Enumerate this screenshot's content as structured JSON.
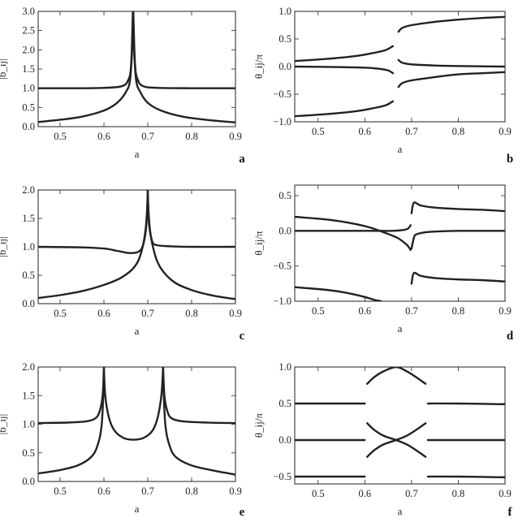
{
  "colors": {
    "line": "#222222",
    "frame": "#222222",
    "background": "#ffffff"
  },
  "chart_data": [
    {
      "panel": "a",
      "type": "line",
      "xlabel": "a",
      "ylabel": "|b_ij|",
      "xlim": [
        0.45,
        0.9
      ],
      "ylim": [
        0,
        3.0
      ],
      "xticks": [
        0.5,
        0.6,
        0.7,
        0.8,
        0.9
      ],
      "xtick_labels": [
        "0.5",
        "0.6",
        "0.7",
        "0.8",
        "0.9"
      ],
      "yticks": [
        0,
        0.5,
        1.0,
        1.5,
        2.0,
        2.5,
        3.0
      ],
      "ytick_labels": [
        "0.0",
        "0.5",
        "1.0",
        "1.5",
        "2.0",
        "2.5",
        "3.0"
      ],
      "grid": false,
      "series": [
        {
          "x": [
            0.45,
            0.55,
            0.6,
            0.64,
            0.655,
            0.662,
            0.666
          ],
          "y": [
            1.0,
            1.0,
            1.01,
            1.05,
            1.2,
            1.6,
            3.0
          ]
        },
        {
          "x": [
            0.667,
            0.671,
            0.678,
            0.69,
            0.72,
            0.8,
            0.9
          ],
          "y": [
            3.0,
            1.6,
            1.2,
            1.05,
            1.01,
            1.0,
            1.0
          ]
        },
        {
          "x": [
            0.45,
            0.5,
            0.55,
            0.6,
            0.63,
            0.65,
            0.66,
            0.666
          ],
          "y": [
            0.12,
            0.18,
            0.26,
            0.42,
            0.62,
            0.9,
            1.25,
            2.4
          ]
        },
        {
          "x": [
            0.667,
            0.673,
            0.683,
            0.7,
            0.73,
            0.78,
            0.84,
            0.9
          ],
          "y": [
            2.4,
            1.25,
            0.9,
            0.62,
            0.42,
            0.26,
            0.17,
            0.11
          ]
        }
      ]
    },
    {
      "panel": "b",
      "type": "line",
      "xlabel": "a",
      "ylabel": "θ_ij/π",
      "xlim": [
        0.45,
        0.9
      ],
      "ylim": [
        -1.0,
        1.0
      ],
      "xticks": [
        0.5,
        0.6,
        0.7,
        0.8,
        0.9
      ],
      "xtick_labels": [
        "0.5",
        "0.6",
        "0.7",
        "0.8",
        "0.9"
      ],
      "yticks": [
        -1.0,
        -0.5,
        0.0,
        0.5,
        1.0
      ],
      "ytick_labels": [
        "−1.0",
        "−0.5",
        "0.0",
        "0.5",
        "1.0"
      ],
      "grid": false,
      "series": [
        {
          "x": [
            0.45,
            0.52,
            0.58,
            0.62,
            0.645,
            0.66
          ],
          "y": [
            0.1,
            0.14,
            0.19,
            0.25,
            0.3,
            0.37
          ]
        },
        {
          "x": [
            0.45,
            0.55,
            0.6,
            0.63,
            0.65,
            0.66
          ],
          "y": [
            0.0,
            -0.01,
            -0.02,
            -0.04,
            -0.07,
            -0.12
          ]
        },
        {
          "x": [
            0.45,
            0.52,
            0.58,
            0.62,
            0.645,
            0.66
          ],
          "y": [
            -0.9,
            -0.86,
            -0.81,
            -0.75,
            -0.7,
            -0.63
          ]
        },
        {
          "x": [
            0.672,
            0.68,
            0.7,
            0.75,
            0.8,
            0.85,
            0.9
          ],
          "y": [
            0.63,
            0.7,
            0.75,
            0.81,
            0.85,
            0.88,
            0.9
          ]
        },
        {
          "x": [
            0.672,
            0.68,
            0.7,
            0.75,
            0.8,
            0.9
          ],
          "y": [
            0.12,
            0.07,
            0.04,
            0.02,
            0.01,
            0.0
          ]
        },
        {
          "x": [
            0.672,
            0.68,
            0.7,
            0.75,
            0.8,
            0.85,
            0.9
          ],
          "y": [
            -0.37,
            -0.3,
            -0.25,
            -0.19,
            -0.14,
            -0.12,
            -0.1
          ]
        }
      ]
    },
    {
      "panel": "c",
      "type": "line",
      "xlabel": "a",
      "ylabel": "|b_ij|",
      "xlim": [
        0.45,
        0.9
      ],
      "ylim": [
        0,
        2.0
      ],
      "xticks": [
        0.5,
        0.6,
        0.7,
        0.8,
        0.9
      ],
      "xtick_labels": [
        "0.5",
        "0.6",
        "0.7",
        "0.8",
        "0.9"
      ],
      "yticks": [
        0,
        0.5,
        1.0,
        1.5,
        2.0
      ],
      "ytick_labels": [
        "0.0",
        "0.5",
        "1.0",
        "1.5",
        "2.0"
      ],
      "grid": false,
      "series": [
        {
          "x": [
            0.45,
            0.55,
            0.6,
            0.63,
            0.66,
            0.68,
            0.69,
            0.697,
            0.7
          ],
          "y": [
            1.0,
            0.99,
            0.97,
            0.93,
            0.89,
            0.92,
            1.05,
            1.4,
            2.0
          ]
        },
        {
          "x": [
            0.7,
            0.703,
            0.71,
            0.72,
            0.75,
            0.8,
            0.9
          ],
          "y": [
            2.0,
            1.4,
            1.1,
            1.03,
            1.01,
            1.0,
            1.0
          ]
        },
        {
          "x": [
            0.45,
            0.5,
            0.55,
            0.6,
            0.64,
            0.67,
            0.685,
            0.695,
            0.7
          ],
          "y": [
            0.1,
            0.15,
            0.22,
            0.33,
            0.46,
            0.65,
            0.9,
            1.3,
            1.85
          ]
        },
        {
          "x": [
            0.7,
            0.705,
            0.715,
            0.73,
            0.76,
            0.8,
            0.85,
            0.9
          ],
          "y": [
            1.85,
            1.3,
            0.9,
            0.62,
            0.38,
            0.24,
            0.14,
            0.08
          ]
        }
      ]
    },
    {
      "panel": "d",
      "type": "line",
      "xlabel": "a",
      "ylabel": "θ_ij/π",
      "xlim": [
        0.45,
        0.9
      ],
      "ylim": [
        -1.0,
        0.65
      ],
      "xticks": [
        0.5,
        0.6,
        0.7,
        0.8,
        0.9
      ],
      "xtick_labels": [
        "0.5",
        "0.6",
        "0.7",
        "0.8",
        "0.9"
      ],
      "yticks": [
        -1.0,
        -0.5,
        0.0,
        0.5
      ],
      "ytick_labels": [
        "−1.0",
        "−0.5",
        "0.0",
        "0.5"
      ],
      "grid": false,
      "series": [
        {
          "x": [
            0.45,
            0.52,
            0.57,
            0.61,
            0.64,
            0.67,
            0.69,
            0.698
          ],
          "y": [
            0.2,
            0.16,
            0.11,
            0.05,
            -0.02,
            -0.1,
            -0.2,
            -0.27
          ]
        },
        {
          "x": [
            0.45,
            0.55,
            0.62,
            0.66,
            0.68,
            0.692,
            0.698
          ],
          "y": [
            0.0,
            0.0,
            0.0,
            0.0,
            0.01,
            0.03,
            0.08
          ]
        },
        {
          "x": [
            0.45,
            0.52,
            0.56,
            0.6,
            0.62,
            0.635
          ],
          "y": [
            -0.8,
            -0.84,
            -0.88,
            -0.94,
            -0.98,
            -1.0
          ]
        },
        {
          "x": [
            0.7,
            0.705,
            0.72,
            0.75,
            0.8,
            0.85,
            0.9
          ],
          "y": [
            0.25,
            0.4,
            0.36,
            0.33,
            0.31,
            0.3,
            0.28
          ]
        },
        {
          "x": [
            0.7,
            0.705,
            0.71,
            0.73,
            0.75,
            0.8,
            0.9
          ],
          "y": [
            -0.25,
            -0.1,
            -0.05,
            -0.02,
            -0.01,
            0.0,
            0.0
          ]
        },
        {
          "x": [
            0.7,
            0.705,
            0.72,
            0.75,
            0.8,
            0.85,
            0.9
          ],
          "y": [
            -0.75,
            -0.6,
            -0.64,
            -0.67,
            -0.69,
            -0.7,
            -0.72
          ]
        }
      ]
    },
    {
      "panel": "e",
      "type": "line",
      "xlabel": "a",
      "ylabel": "|b_ij|",
      "xlim": [
        0.45,
        0.9
      ],
      "ylim": [
        0,
        2.0
      ],
      "xticks": [
        0.5,
        0.6,
        0.7,
        0.8,
        0.9
      ],
      "xtick_labels": [
        "0.5",
        "0.6",
        "0.7",
        "0.8",
        "0.9"
      ],
      "yticks": [
        0,
        0.5,
        1.0,
        1.5,
        2.0
      ],
      "ytick_labels": [
        "0.0",
        "0.5",
        "1.0",
        "1.5",
        "2.0"
      ],
      "grid": false,
      "series": [
        {
          "x": [
            0.45,
            0.52,
            0.56,
            0.58,
            0.59,
            0.597,
            0.6
          ],
          "y": [
            1.02,
            1.03,
            1.05,
            1.1,
            1.22,
            1.5,
            2.0
          ]
        },
        {
          "x": [
            0.6,
            0.603,
            0.612,
            0.625,
            0.645,
            0.667,
            0.69,
            0.71,
            0.722,
            0.731,
            0.735
          ],
          "y": [
            2.0,
            1.5,
            1.1,
            0.88,
            0.76,
            0.73,
            0.76,
            0.88,
            1.1,
            1.5,
            2.0
          ]
        },
        {
          "x": [
            0.735,
            0.738,
            0.745,
            0.755,
            0.78,
            0.83,
            0.9
          ],
          "y": [
            2.0,
            1.5,
            1.22,
            1.1,
            1.05,
            1.03,
            1.02
          ]
        },
        {
          "x": [
            0.45,
            0.5,
            0.54,
            0.57,
            0.585,
            0.595,
            0.6
          ],
          "y": [
            0.14,
            0.2,
            0.28,
            0.42,
            0.62,
            1.0,
            1.8
          ]
        },
        {
          "x": [
            0.735,
            0.74,
            0.75,
            0.765,
            0.8,
            0.85,
            0.9
          ],
          "y": [
            1.8,
            1.0,
            0.62,
            0.42,
            0.28,
            0.19,
            0.12
          ]
        }
      ]
    },
    {
      "panel": "f",
      "type": "line",
      "xlabel": "a",
      "ylabel": "θ_ij/π",
      "xlim": [
        0.45,
        0.9
      ],
      "ylim": [
        -0.6,
        1.0
      ],
      "xticks": [
        0.5,
        0.6,
        0.7,
        0.8,
        0.9
      ],
      "xtick_labels": [
        "0.5",
        "0.6",
        "0.7",
        "0.8",
        "0.9"
      ],
      "yticks": [
        -0.5,
        0.0,
        0.5,
        1.0
      ],
      "ytick_labels": [
        "−0.5",
        "0.0",
        "0.5",
        "1.0"
      ],
      "grid": false,
      "series": [
        {
          "x": [
            0.45,
            0.55,
            0.6
          ],
          "y": [
            0.5,
            0.5,
            0.5
          ]
        },
        {
          "x": [
            0.45,
            0.55,
            0.6
          ],
          "y": [
            0.0,
            0.0,
            0.0
          ]
        },
        {
          "x": [
            0.45,
            0.55,
            0.6
          ],
          "y": [
            -0.5,
            -0.5,
            -0.5
          ]
        },
        {
          "x": [
            0.735,
            0.8,
            0.9
          ],
          "y": [
            0.5,
            0.5,
            0.49
          ]
        },
        {
          "x": [
            0.735,
            0.8,
            0.9
          ],
          "y": [
            0.0,
            0.0,
            0.0
          ]
        },
        {
          "x": [
            0.735,
            0.8,
            0.9
          ],
          "y": [
            -0.5,
            -0.5,
            -0.51
          ]
        },
        {
          "x": [
            0.605,
            0.62,
            0.64,
            0.667,
            0.69,
            0.71,
            0.73
          ],
          "y": [
            0.77,
            0.86,
            0.94,
            1.0,
            0.94,
            0.86,
            0.77
          ]
        },
        {
          "x": [
            0.605,
            0.62,
            0.64,
            0.667,
            0.69,
            0.71,
            0.73
          ],
          "y": [
            0.23,
            0.14,
            0.06,
            0.0,
            -0.06,
            -0.14,
            -0.23
          ]
        },
        {
          "x": [
            0.605,
            0.62,
            0.64,
            0.667,
            0.69,
            0.71,
            0.73
          ],
          "y": [
            -0.23,
            -0.14,
            -0.06,
            0.0,
            0.06,
            0.14,
            0.23
          ]
        }
      ]
    }
  ]
}
